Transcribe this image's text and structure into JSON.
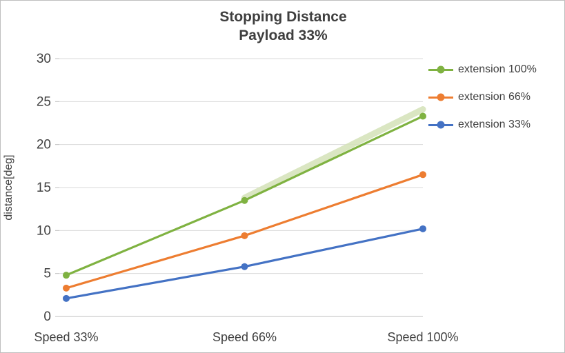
{
  "chart_data": {
    "type": "line",
    "title": "Stopping Distance",
    "subtitle": "Payload 33%",
    "ylabel": "distance[deg]",
    "categories": [
      "Speed 33%",
      "Speed 66%",
      "Speed 100%"
    ],
    "series": [
      {
        "name": "extension 100%",
        "color": "#7FB241",
        "values": [
          4.8,
          13.5,
          23.3
        ]
      },
      {
        "name": "extension 66%",
        "color": "#ED7D31",
        "values": [
          3.3,
          9.4,
          16.5
        ]
      },
      {
        "name": "extension 33%",
        "color": "#4472C4",
        "values": [
          2.1,
          5.8,
          10.2
        ]
      }
    ],
    "ylim": [
      0,
      30
    ],
    "yticks": [
      0,
      5,
      10,
      15,
      20,
      25,
      30
    ],
    "grid": true,
    "legend_position": "right",
    "glow": {
      "series": "extension 100%",
      "from_index": 1,
      "to_index": 2,
      "start_value": 13.8,
      "end_value": 24.1,
      "color": "#D6E4BC"
    },
    "colors": {
      "gridline": "#D9D9D9",
      "axis": "#BFBFBF",
      "tick_label": "#404040",
      "title_text": "#3F3F3F"
    }
  }
}
